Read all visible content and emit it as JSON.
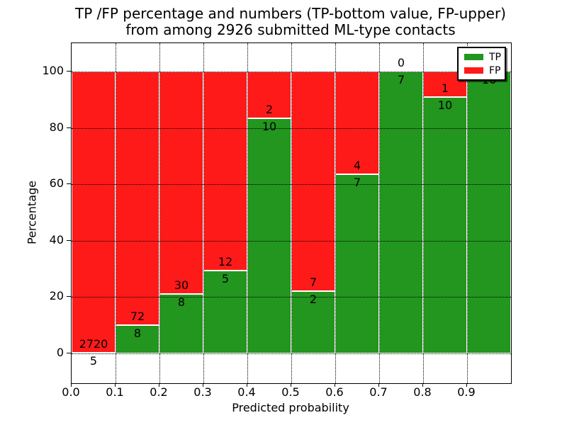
{
  "title": {
    "line1": "TP /FP percentage and numbers (TP-bottom value, FP-upper)",
    "line2": "from among 2926 submitted ML-type contacts"
  },
  "chart_data": {
    "type": "bar",
    "subtype": "stacked-percentage",
    "title": "TP /FP percentage and numbers (TP-bottom value, FP-upper) from among 2926 submitted ML-type contacts",
    "xlabel": "Predicted probability",
    "ylabel": "Percentage",
    "total_contacts": 2926,
    "xlim": [
      0.0,
      1.0
    ],
    "ylim": [
      -10.6,
      110.1
    ],
    "grid": true,
    "x_ticks": [
      "0.0",
      "0.1",
      "0.2",
      "0.3",
      "0.4",
      "0.5",
      "0.6",
      "0.7",
      "0.8",
      "0.9"
    ],
    "y_ticks": [
      0,
      20,
      40,
      60,
      80,
      100
    ],
    "categories": [
      "0.0-0.1",
      "0.1-0.2",
      "0.2-0.3",
      "0.3-0.4",
      "0.4-0.5",
      "0.5-0.6",
      "0.6-0.7",
      "0.7-0.8",
      "0.8-0.9",
      "0.9-1.0"
    ],
    "series": [
      {
        "name": "TP",
        "color": "#22961e",
        "values": [
          5,
          8,
          8,
          5,
          10,
          2,
          7,
          7,
          10,
          16
        ]
      },
      {
        "name": "FP",
        "color": "#ff1a1a",
        "values": [
          2720,
          72,
          30,
          12,
          2,
          7,
          4,
          0,
          1,
          0
        ]
      }
    ],
    "tp_pct": [
      0.18,
      10.0,
      21.05,
      29.41,
      83.33,
      22.22,
      63.64,
      100.0,
      90.91,
      100.0
    ],
    "legend": {
      "position": "upper right",
      "entries": [
        {
          "label": "TP",
          "color": "#22961e"
        },
        {
          "label": "FP",
          "color": "#ff1a1a"
        }
      ]
    },
    "colors": {
      "tp": "#22961e",
      "fp": "#ff1a1a",
      "bar_edge": "#ffffff",
      "grid": "#000000",
      "background": "#ffffff"
    }
  }
}
